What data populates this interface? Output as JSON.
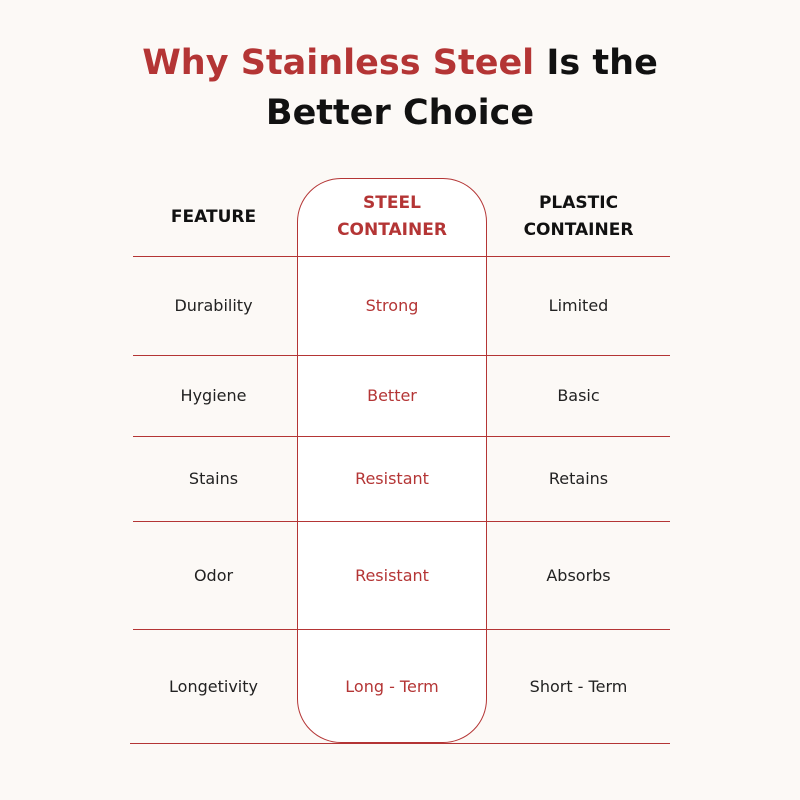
{
  "title": {
    "lines": [
      [
        {
          "text": "Why Stainless Steel",
          "color": "#b43535"
        },
        {
          "text": "Is the",
          "color": "#111111"
        }
      ],
      [
        {
          "text": "Better Choice",
          "color": "#111111"
        }
      ]
    ]
  },
  "table": {
    "header": [
      "FEATURE",
      "STEEL CONTAINER",
      "PLASTIC CONTAINER"
    ],
    "rows": [
      [
        "Durability",
        "Strong",
        "Limited"
      ],
      [
        "Hygiene",
        "Better",
        "Basic"
      ],
      [
        "Stains",
        "Resistant",
        "Retains"
      ],
      [
        "Odor",
        "Resistant",
        "Absorbs"
      ],
      [
        "Longetivity",
        "Long - Term",
        "Short - Term"
      ]
    ],
    "highlight_column": 1,
    "highlight_color": "#b43535"
  }
}
